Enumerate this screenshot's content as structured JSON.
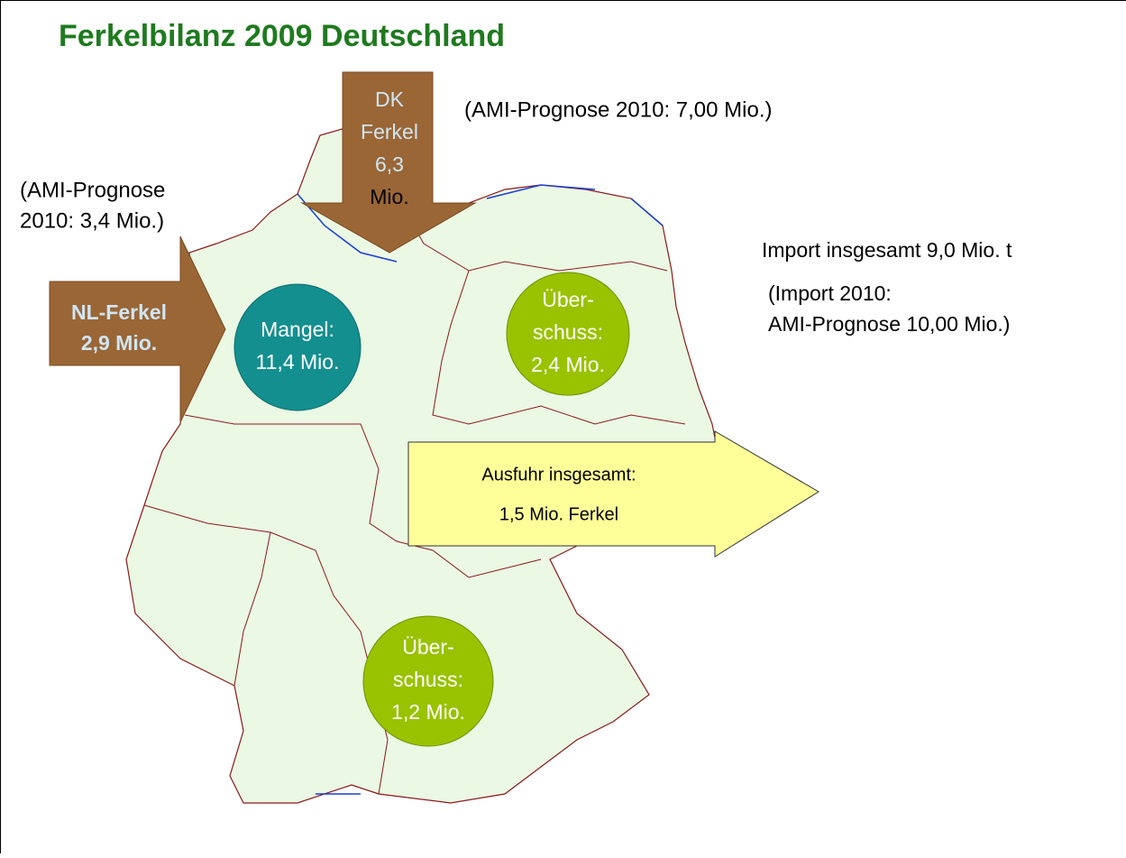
{
  "title": "Ferkelbilanz 2009  Deutschland",
  "dk_arrow": {
    "lines": [
      "DK",
      "Ferkel",
      "6,3",
      "Mio."
    ]
  },
  "dk_forecast": "(AMI-Prognose 2010: 7,00 Mio.)",
  "nl_forecast": {
    "lines": [
      "(AMI-Prognose",
      "2010: 3,4 Mio.)"
    ]
  },
  "nl_arrow": {
    "lines": [
      "NL-Ferkel",
      "2,9 Mio."
    ]
  },
  "circles": [
    {
      "lines": [
        "Mangel:",
        "11,4 Mio."
      ]
    },
    {
      "lines": [
        "Über-",
        "schuss:",
        "2,4 Mio."
      ]
    },
    {
      "lines": [
        "Über-",
        "schuss:",
        "1,2 Mio."
      ]
    }
  ],
  "import_total": "Import insgesamt 9,0 Mio. t",
  "import_forecast": {
    "lines": [
      "(Import 2010:",
      "AMI-Prognose  10,00 Mio.)"
    ]
  },
  "export_arrow": {
    "lines": [
      "Ausfuhr insgesamt:",
      "1,5 Mio. Ferkel"
    ]
  }
}
